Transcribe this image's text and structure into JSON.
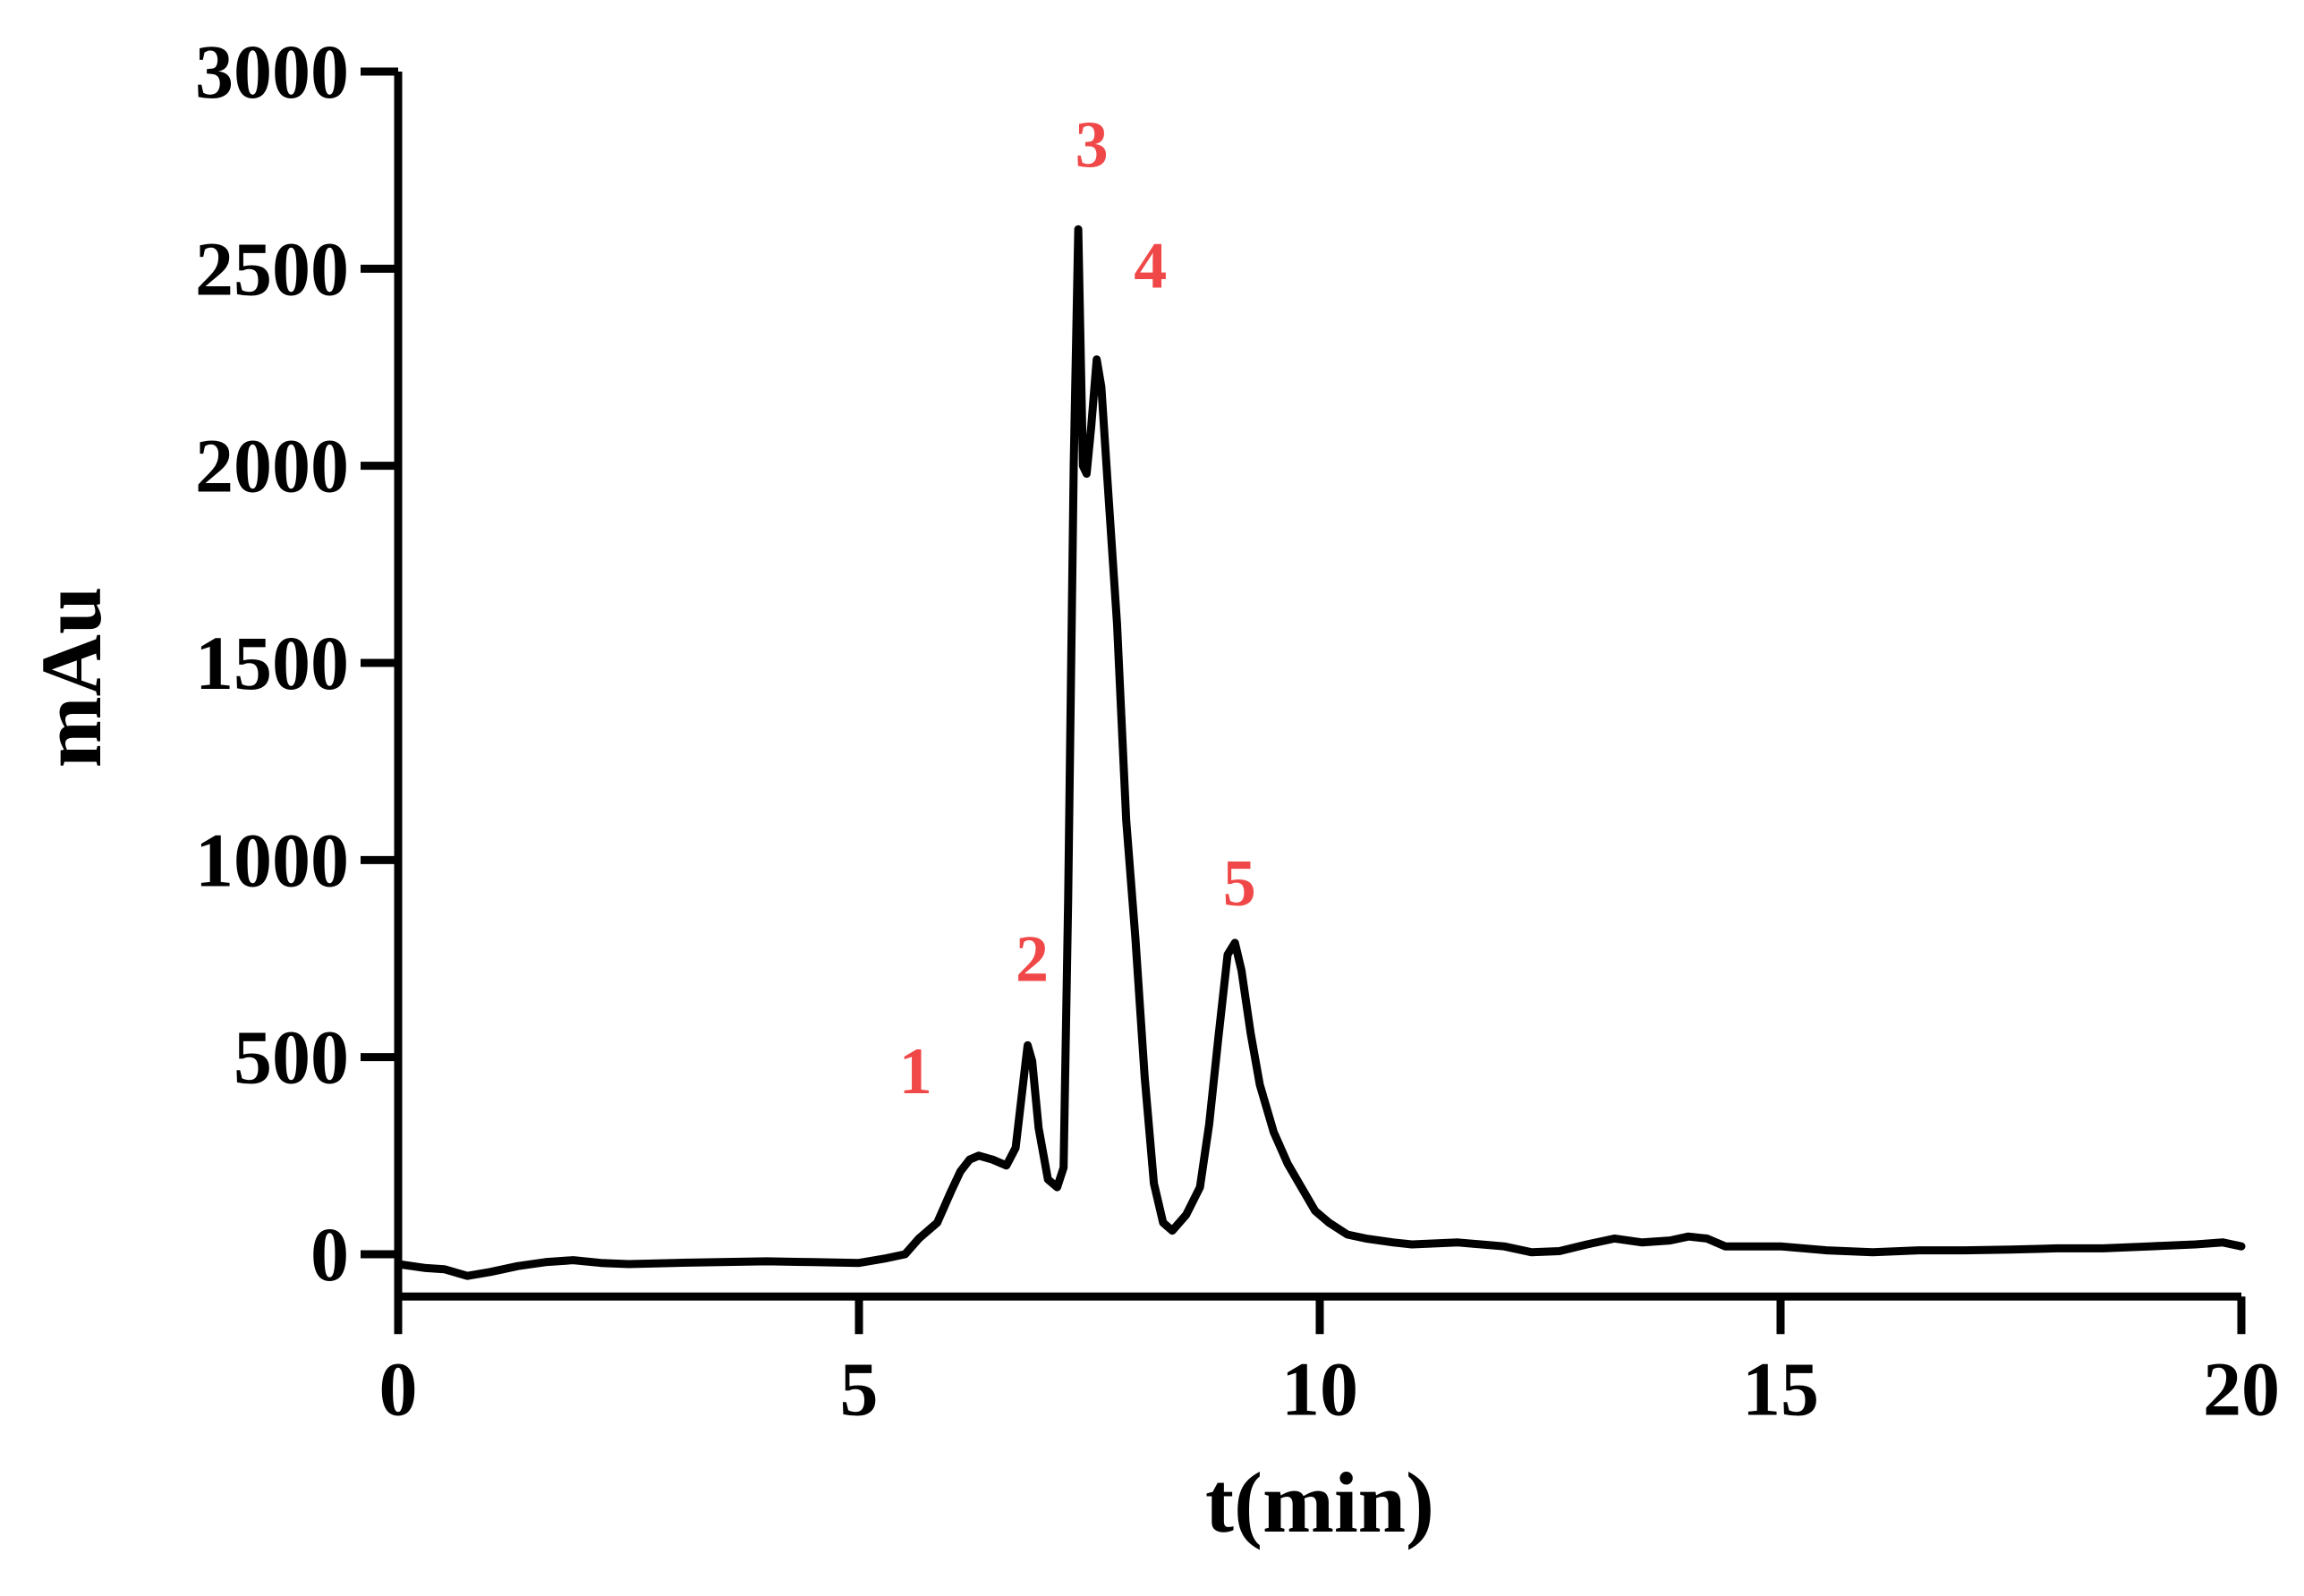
{
  "chart_data": {
    "type": "line",
    "xlabel": "t(min)",
    "ylabel": "mAu",
    "xlim": [
      0,
      20
    ],
    "ylim": [
      -80,
      3000
    ],
    "x_ticks": [
      0,
      5,
      10,
      15,
      20
    ],
    "y_ticks": [
      0,
      500,
      1000,
      1500,
      2000,
      2500,
      3000
    ],
    "grid": false,
    "line_color": "#000000",
    "label_color": "#f04848",
    "series": [
      {
        "points": [
          [
            0.0,
            -25
          ],
          [
            0.3,
            -35
          ],
          [
            0.5,
            -38
          ],
          [
            0.75,
            -55
          ],
          [
            1.0,
            -45
          ],
          [
            1.3,
            -30
          ],
          [
            1.6,
            -20
          ],
          [
            1.9,
            -15
          ],
          [
            2.2,
            -22
          ],
          [
            2.5,
            -25
          ],
          [
            3.0,
            -22
          ],
          [
            3.5,
            -20
          ],
          [
            4.0,
            -18
          ],
          [
            4.5,
            -20
          ],
          [
            5.0,
            -22
          ],
          [
            5.3,
            -10
          ],
          [
            5.5,
            0
          ],
          [
            5.65,
            40
          ],
          [
            5.85,
            80
          ],
          [
            6.0,
            160
          ],
          [
            6.1,
            210
          ],
          [
            6.2,
            240
          ],
          [
            6.3,
            250
          ],
          [
            6.45,
            240
          ],
          [
            6.6,
            225
          ],
          [
            6.7,
            270
          ],
          [
            6.78,
            430
          ],
          [
            6.83,
            530
          ],
          [
            6.88,
            490
          ],
          [
            6.95,
            320
          ],
          [
            7.05,
            190
          ],
          [
            7.15,
            170
          ],
          [
            7.22,
            220
          ],
          [
            7.27,
            900
          ],
          [
            7.33,
            2000
          ],
          [
            7.38,
            2600
          ],
          [
            7.43,
            2000
          ],
          [
            7.47,
            1980
          ],
          [
            7.52,
            2100
          ],
          [
            7.58,
            2270
          ],
          [
            7.63,
            2200
          ],
          [
            7.7,
            1950
          ],
          [
            7.8,
            1600
          ],
          [
            7.9,
            1100
          ],
          [
            8.0,
            800
          ],
          [
            8.1,
            450
          ],
          [
            8.2,
            180
          ],
          [
            8.3,
            80
          ],
          [
            8.4,
            60
          ],
          [
            8.55,
            100
          ],
          [
            8.7,
            170
          ],
          [
            8.8,
            330
          ],
          [
            8.9,
            550
          ],
          [
            9.0,
            760
          ],
          [
            9.08,
            790
          ],
          [
            9.15,
            720
          ],
          [
            9.25,
            560
          ],
          [
            9.35,
            430
          ],
          [
            9.5,
            310
          ],
          [
            9.65,
            230
          ],
          [
            9.8,
            170
          ],
          [
            9.95,
            110
          ],
          [
            10.1,
            80
          ],
          [
            10.3,
            50
          ],
          [
            10.5,
            40
          ],
          [
            10.8,
            30
          ],
          [
            11.0,
            25
          ],
          [
            11.5,
            30
          ],
          [
            12.0,
            20
          ],
          [
            12.3,
            5
          ],
          [
            12.6,
            8
          ],
          [
            12.9,
            25
          ],
          [
            13.2,
            40
          ],
          [
            13.5,
            30
          ],
          [
            13.8,
            35
          ],
          [
            14.0,
            45
          ],
          [
            14.2,
            40
          ],
          [
            14.4,
            20
          ],
          [
            15.0,
            20
          ],
          [
            15.5,
            10
          ],
          [
            16.0,
            5
          ],
          [
            16.5,
            10
          ],
          [
            17.0,
            10
          ],
          [
            17.5,
            12
          ],
          [
            18.0,
            15
          ],
          [
            18.5,
            15
          ],
          [
            19.0,
            20
          ],
          [
            19.5,
            25
          ],
          [
            19.8,
            30
          ],
          [
            20.0,
            20
          ]
        ]
      }
    ],
    "annotations": [
      {
        "text": "1",
        "x": 6.1,
        "y": 250
      },
      {
        "text": "2",
        "x": 6.83,
        "y": 530
      },
      {
        "text": "3",
        "x": 7.38,
        "y": 2600
      },
      {
        "text": "4",
        "x": 7.58,
        "y": 2270
      },
      {
        "text": "5",
        "x": 9.08,
        "y": 790
      }
    ]
  }
}
